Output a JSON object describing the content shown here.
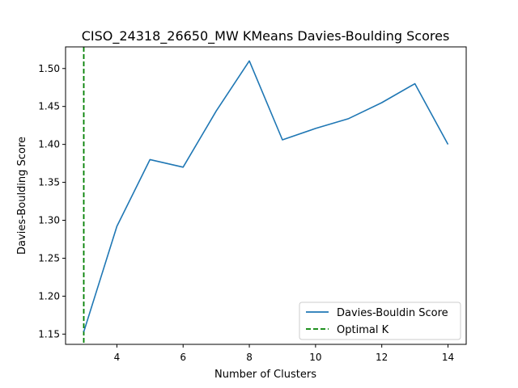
{
  "chart_data": {
    "type": "line",
    "title": "CISO_24318_26650_MW KMeans Davies-Boulding Scores",
    "xlabel": "Number of Clusters",
    "ylabel": "Davies-Boulding Score",
    "xlim": [
      2.45,
      14.55
    ],
    "ylim": [
      1.1365,
      1.5285
    ],
    "xticks": [
      4,
      6,
      8,
      10,
      12,
      14
    ],
    "yticks": [
      1.15,
      1.2,
      1.25,
      1.3,
      1.35,
      1.4,
      1.45,
      1.5
    ],
    "grid": false,
    "legend_position": "lower-right",
    "series": [
      {
        "name": "Davies-Bouldin Score",
        "color": "#1f77b4",
        "style": "solid",
        "x": [
          3,
          4,
          5,
          6,
          7,
          8,
          9,
          10,
          11,
          12,
          13,
          14
        ],
        "y": [
          1.153,
          1.292,
          1.38,
          1.37,
          1.444,
          1.51,
          1.406,
          1.421,
          1.434,
          1.455,
          1.48,
          1.4
        ]
      }
    ],
    "vlines": [
      {
        "name": "Optimal K",
        "x": 3,
        "color": "#008000",
        "style": "dashed"
      }
    ]
  }
}
